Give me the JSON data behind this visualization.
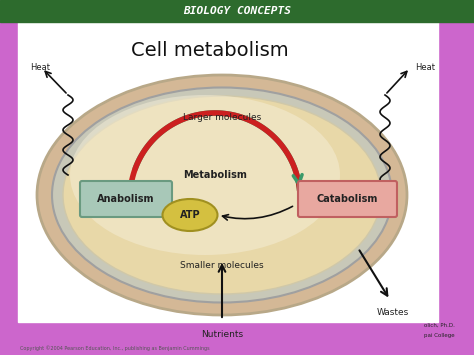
{
  "title": "Cell metabolism",
  "bg_outer": "#cc66cc",
  "bg_inner": "#ffffff",
  "header_bg": "#2d6b2d",
  "cell_outer_fill": "#d4b896",
  "cell_mid_fill": "#c8c8b8",
  "cell_inner_fill": "#e8d8a8",
  "cell_highlight": "#f5eed8",
  "anabolism_fill": "#a8c8b8",
  "anabolism_edge": "#6a9a80",
  "catabolism_fill": "#e8a8a0",
  "catabolism_edge": "#c06060",
  "atp_fill": "#d4c040",
  "atp_edge": "#a09020",
  "green_arrow": "#3a9a6a",
  "red_arrow": "#cc2020",
  "black": "#111111",
  "title_color": "#111111",
  "text_color": "#222222",
  "labels": {
    "larger_molecules": "Larger molecules",
    "smaller_molecules": "Smaller molecules",
    "metabolism": "Metabolism",
    "atp": "ATP",
    "anabolism": "Anabolism",
    "catabolism": "Catabolism",
    "nutrients": "Nutrients",
    "wastes": "Wastes",
    "heat_left": "Heat",
    "heat_right": "Heat"
  },
  "copyright": "Copyright ©2004 Pearson Education, Inc., publishing as Benjamin Cummings"
}
